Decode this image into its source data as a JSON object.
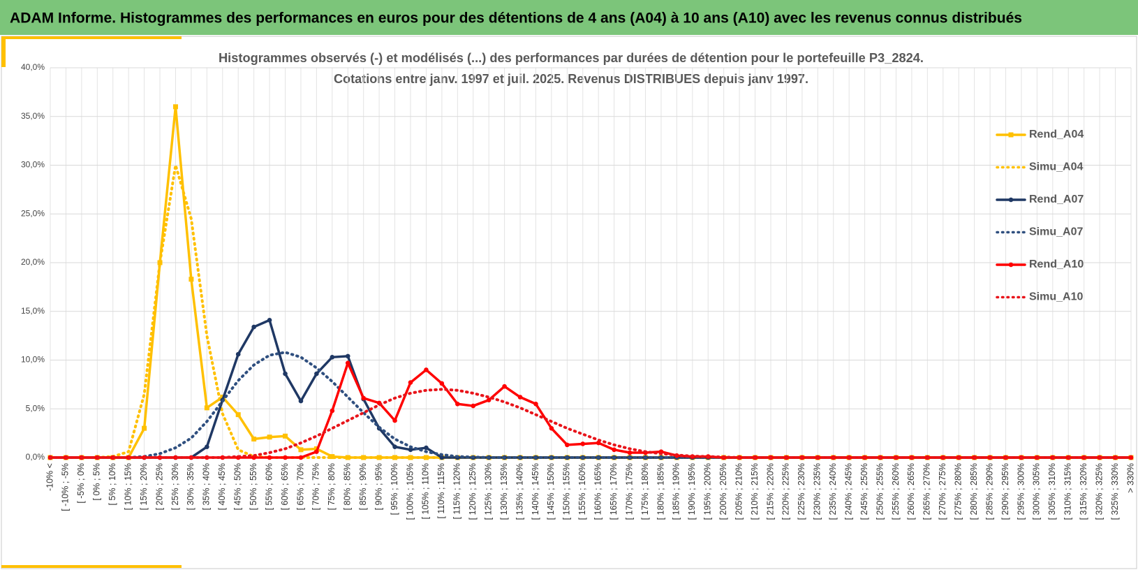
{
  "header": {
    "title": "ADAM Informe. Histogrammes des performances en euros pour des détentions de 4 ans (A04) à 10 ans (A10) avec les revenus connus distribués"
  },
  "chart_data": {
    "type": "line",
    "title": "Histogrammes observés (-) et modélisés (...) des performances par durées de détention pour  le portefeuille P3_2824.",
    "subtitle": "Cotations entre janv. 1997 et juil. 2025. Revenus DISTRIBUES depuis janv 1997.",
    "categories": [
      "-10% <",
      "[ -10% ; -5%",
      "[ -5% ; 0%",
      "[ 0% ; 5%",
      "[ 5% ; 10%",
      "[ 10% ; 15%",
      "[ 15% ; 20%",
      "[ 20% ; 25%",
      "[ 25% ; 30%",
      "[ 30% ; 35%",
      "[ 35% ; 40%",
      "[ 40% ; 45%",
      "[ 45% ; 50%",
      "[ 50% ; 55%",
      "[ 55% ; 60%",
      "[ 60% ; 65%",
      "[ 65% ; 70%",
      "[ 70% ; 75%",
      "[ 75% ; 80%",
      "[ 80% ; 85%",
      "[ 85% ; 90%",
      "[ 90% ; 95%",
      "[ 95% ; 100%",
      "[ 100% ; 105%",
      "[ 105% ; 110%",
      "[ 110% ; 115%",
      "[ 115% ; 120%",
      "[ 120% ; 125%",
      "[ 125% ; 130%",
      "[ 130% ; 135%",
      "[ 135% ; 140%",
      "[ 140% ; 145%",
      "[ 145% ; 150%",
      "[ 150% ; 155%",
      "[ 155% ; 160%",
      "[ 160% ; 165%",
      "[ 165% ; 170%",
      "[ 170% ; 175%",
      "[ 175% ; 180%",
      "[ 180% ; 185%",
      "[ 185% ; 190%",
      "[ 190% ; 195%",
      "[ 195% ; 200%",
      "[ 200% ; 205%",
      "[ 205% ; 210%",
      "[ 210% ; 215%",
      "[ 215% ; 220%",
      "[ 220% ; 225%",
      "[ 225% ; 230%",
      "[ 230% ; 235%",
      "[ 235% ; 240%",
      "[ 240% ; 245%",
      "[ 245% ; 250%",
      "[ 250% ; 255%",
      "[ 255% ; 260%",
      "[ 260% ; 265%",
      "[ 265% ; 270%",
      "[ 270% ; 275%",
      "[ 275% ; 280%",
      "[ 280% ; 285%",
      "[ 285% ; 290%",
      "[ 290% ; 295%",
      "[ 295% ; 300%",
      "[ 300% ; 305%",
      "[ 305% ; 310%",
      "[ 310% ; 315%",
      "[ 315% ; 320%",
      "[ 320% ; 325%",
      "[ 325% ; 330%",
      "> 330%"
    ],
    "series": [
      {
        "name": "Rend_A04",
        "color": "#ffc000",
        "dash": "solid",
        "marker": "square",
        "values": [
          0,
          0,
          0,
          0,
          0,
          0,
          3.0,
          20.0,
          36.0,
          18.3,
          5.1,
          6.2,
          4.4,
          1.9,
          2.1,
          2.2,
          0.8,
          0.9,
          0.1,
          0,
          0,
          0,
          0,
          0,
          0,
          0,
          0,
          0,
          0,
          0,
          0,
          0,
          0,
          0,
          0,
          0,
          0,
          0,
          0,
          0,
          0,
          0,
          0,
          0,
          0,
          0,
          0,
          0,
          0,
          0,
          0,
          0,
          0,
          0,
          0,
          0,
          0,
          0,
          0,
          0,
          0,
          0,
          0,
          0,
          0,
          0,
          0,
          0,
          0,
          0
        ]
      },
      {
        "name": "Simu_A04",
        "color": "#ffc000",
        "dash": "dotted",
        "marker": "none",
        "values": [
          0,
          0,
          0,
          0,
          0.1,
          0.6,
          6.5,
          20,
          30,
          24.5,
          12.5,
          4.5,
          0.8,
          0.1,
          0,
          0,
          0,
          0,
          0,
          0,
          0,
          0,
          0,
          0,
          0,
          0,
          0,
          0,
          0,
          0,
          0,
          0,
          0,
          0,
          0,
          0,
          0,
          0,
          0,
          0,
          0,
          0,
          0,
          0,
          0,
          0,
          0,
          0,
          0,
          0,
          0,
          0,
          0,
          0,
          0,
          0,
          0,
          0,
          0,
          0,
          0,
          0,
          0,
          0,
          0,
          0,
          0,
          0,
          0,
          0
        ]
      },
      {
        "name": "Rend_A07",
        "color": "#1f3864",
        "dash": "solid",
        "marker": "circle",
        "values": [
          0,
          0,
          0,
          0,
          0,
          0,
          0,
          0,
          0,
          0,
          1.1,
          5.9,
          10.6,
          13.4,
          14.1,
          8.6,
          5.8,
          8.6,
          10.3,
          10.4,
          6.0,
          3.0,
          1.1,
          0.8,
          1.0,
          0,
          0,
          0,
          0,
          0,
          0,
          0,
          0,
          0,
          0,
          0,
          0,
          0,
          0,
          0,
          0,
          0,
          0,
          0,
          0,
          0,
          0,
          0,
          0,
          0,
          0,
          0,
          0,
          0,
          0,
          0,
          0,
          0,
          0,
          0,
          0,
          0,
          0,
          0,
          0,
          0,
          0,
          0,
          0,
          0
        ]
      },
      {
        "name": "Simu_A07",
        "color": "#2f4f7f",
        "dash": "dotted",
        "marker": "none",
        "values": [
          0,
          0,
          0,
          0,
          0,
          0,
          0.1,
          0.4,
          1.0,
          2.0,
          3.7,
          5.8,
          7.9,
          9.5,
          10.5,
          10.8,
          10.3,
          9.2,
          7.8,
          6.2,
          4.6,
          3.1,
          1.9,
          1.1,
          0.6,
          0.3,
          0.1,
          0.05,
          0,
          0,
          0,
          0,
          0,
          0,
          0,
          0,
          0,
          0,
          0,
          0,
          0,
          0,
          0,
          0,
          0,
          0,
          0,
          0,
          0,
          0,
          0,
          0,
          0,
          0,
          0,
          0,
          0,
          0,
          0,
          0,
          0,
          0,
          0,
          0,
          0,
          0,
          0,
          0,
          0,
          0
        ]
      },
      {
        "name": "Rend_A10",
        "color": "#ff0000",
        "dash": "solid",
        "marker": "circle",
        "values": [
          0,
          0,
          0,
          0,
          0,
          0,
          0,
          0,
          0,
          0,
          0,
          0,
          0,
          0,
          0,
          0,
          0,
          0.6,
          4.8,
          9.7,
          6.1,
          5.6,
          3.8,
          7.7,
          9.0,
          7.6,
          5.5,
          5.3,
          5.9,
          7.3,
          6.2,
          5.5,
          3.0,
          1.3,
          1.4,
          1.5,
          0.8,
          0.5,
          0.5,
          0.6,
          0.2,
          0.1,
          0.1,
          0,
          0,
          0,
          0,
          0,
          0,
          0,
          0,
          0,
          0,
          0,
          0,
          0,
          0,
          0,
          0,
          0,
          0,
          0,
          0,
          0,
          0,
          0,
          0,
          0,
          0,
          0
        ]
      },
      {
        "name": "Simu_A10",
        "color": "#e8141a",
        "dash": "dotted",
        "marker": "none",
        "values": [
          0,
          0,
          0,
          0,
          0,
          0,
          0,
          0,
          0,
          0,
          0,
          0,
          0.1,
          0.2,
          0.5,
          0.9,
          1.5,
          2.2,
          3.0,
          3.8,
          4.6,
          5.4,
          6.1,
          6.6,
          6.9,
          7.0,
          6.9,
          6.6,
          6.2,
          5.7,
          5.1,
          4.4,
          3.7,
          3.0,
          2.4,
          1.8,
          1.3,
          0.9,
          0.6,
          0.4,
          0.25,
          0.15,
          0.1,
          0.05,
          0,
          0,
          0,
          0,
          0,
          0,
          0,
          0,
          0,
          0,
          0,
          0,
          0,
          0,
          0,
          0,
          0,
          0,
          0,
          0,
          0,
          0,
          0,
          0,
          0,
          0
        ]
      }
    ],
    "ylim": [
      0,
      40
    ],
    "yticks": [
      {
        "value": 0,
        "label": "0,0%"
      },
      {
        "value": 5,
        "label": "5,0%"
      },
      {
        "value": 10,
        "label": "10,0%"
      },
      {
        "value": 15,
        "label": "15,0%"
      },
      {
        "value": 20,
        "label": "20,0%"
      },
      {
        "value": 25,
        "label": "25,0%"
      },
      {
        "value": 30,
        "label": "30,0%"
      },
      {
        "value": 35,
        "label": "35,0%"
      },
      {
        "value": 40,
        "label": "40,0%"
      }
    ],
    "grid": true,
    "legend": "right"
  }
}
